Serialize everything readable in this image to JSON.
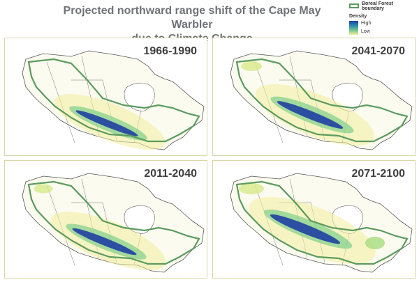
{
  "title_line1": "Projected northward range shift of the Cape May Warbler",
  "title_line2": "due to Climate Change",
  "legend": {
    "boundary_label": "Boreal Forest boundary",
    "density_label": "Density",
    "high_label": "High",
    "low_label": "Low",
    "boundary_color": "#5b9b5e",
    "high_color": "#1f3fa3",
    "low_color": "#f2ef9f"
  },
  "panels": [
    {
      "period": "1966-1990",
      "northward_shift": 0
    },
    {
      "period": "2041-2070",
      "northward_shift": 1
    },
    {
      "period": "2011-2040",
      "northward_shift": 0.5
    },
    {
      "period": "2071-2100",
      "northward_shift": 2
    }
  ]
}
